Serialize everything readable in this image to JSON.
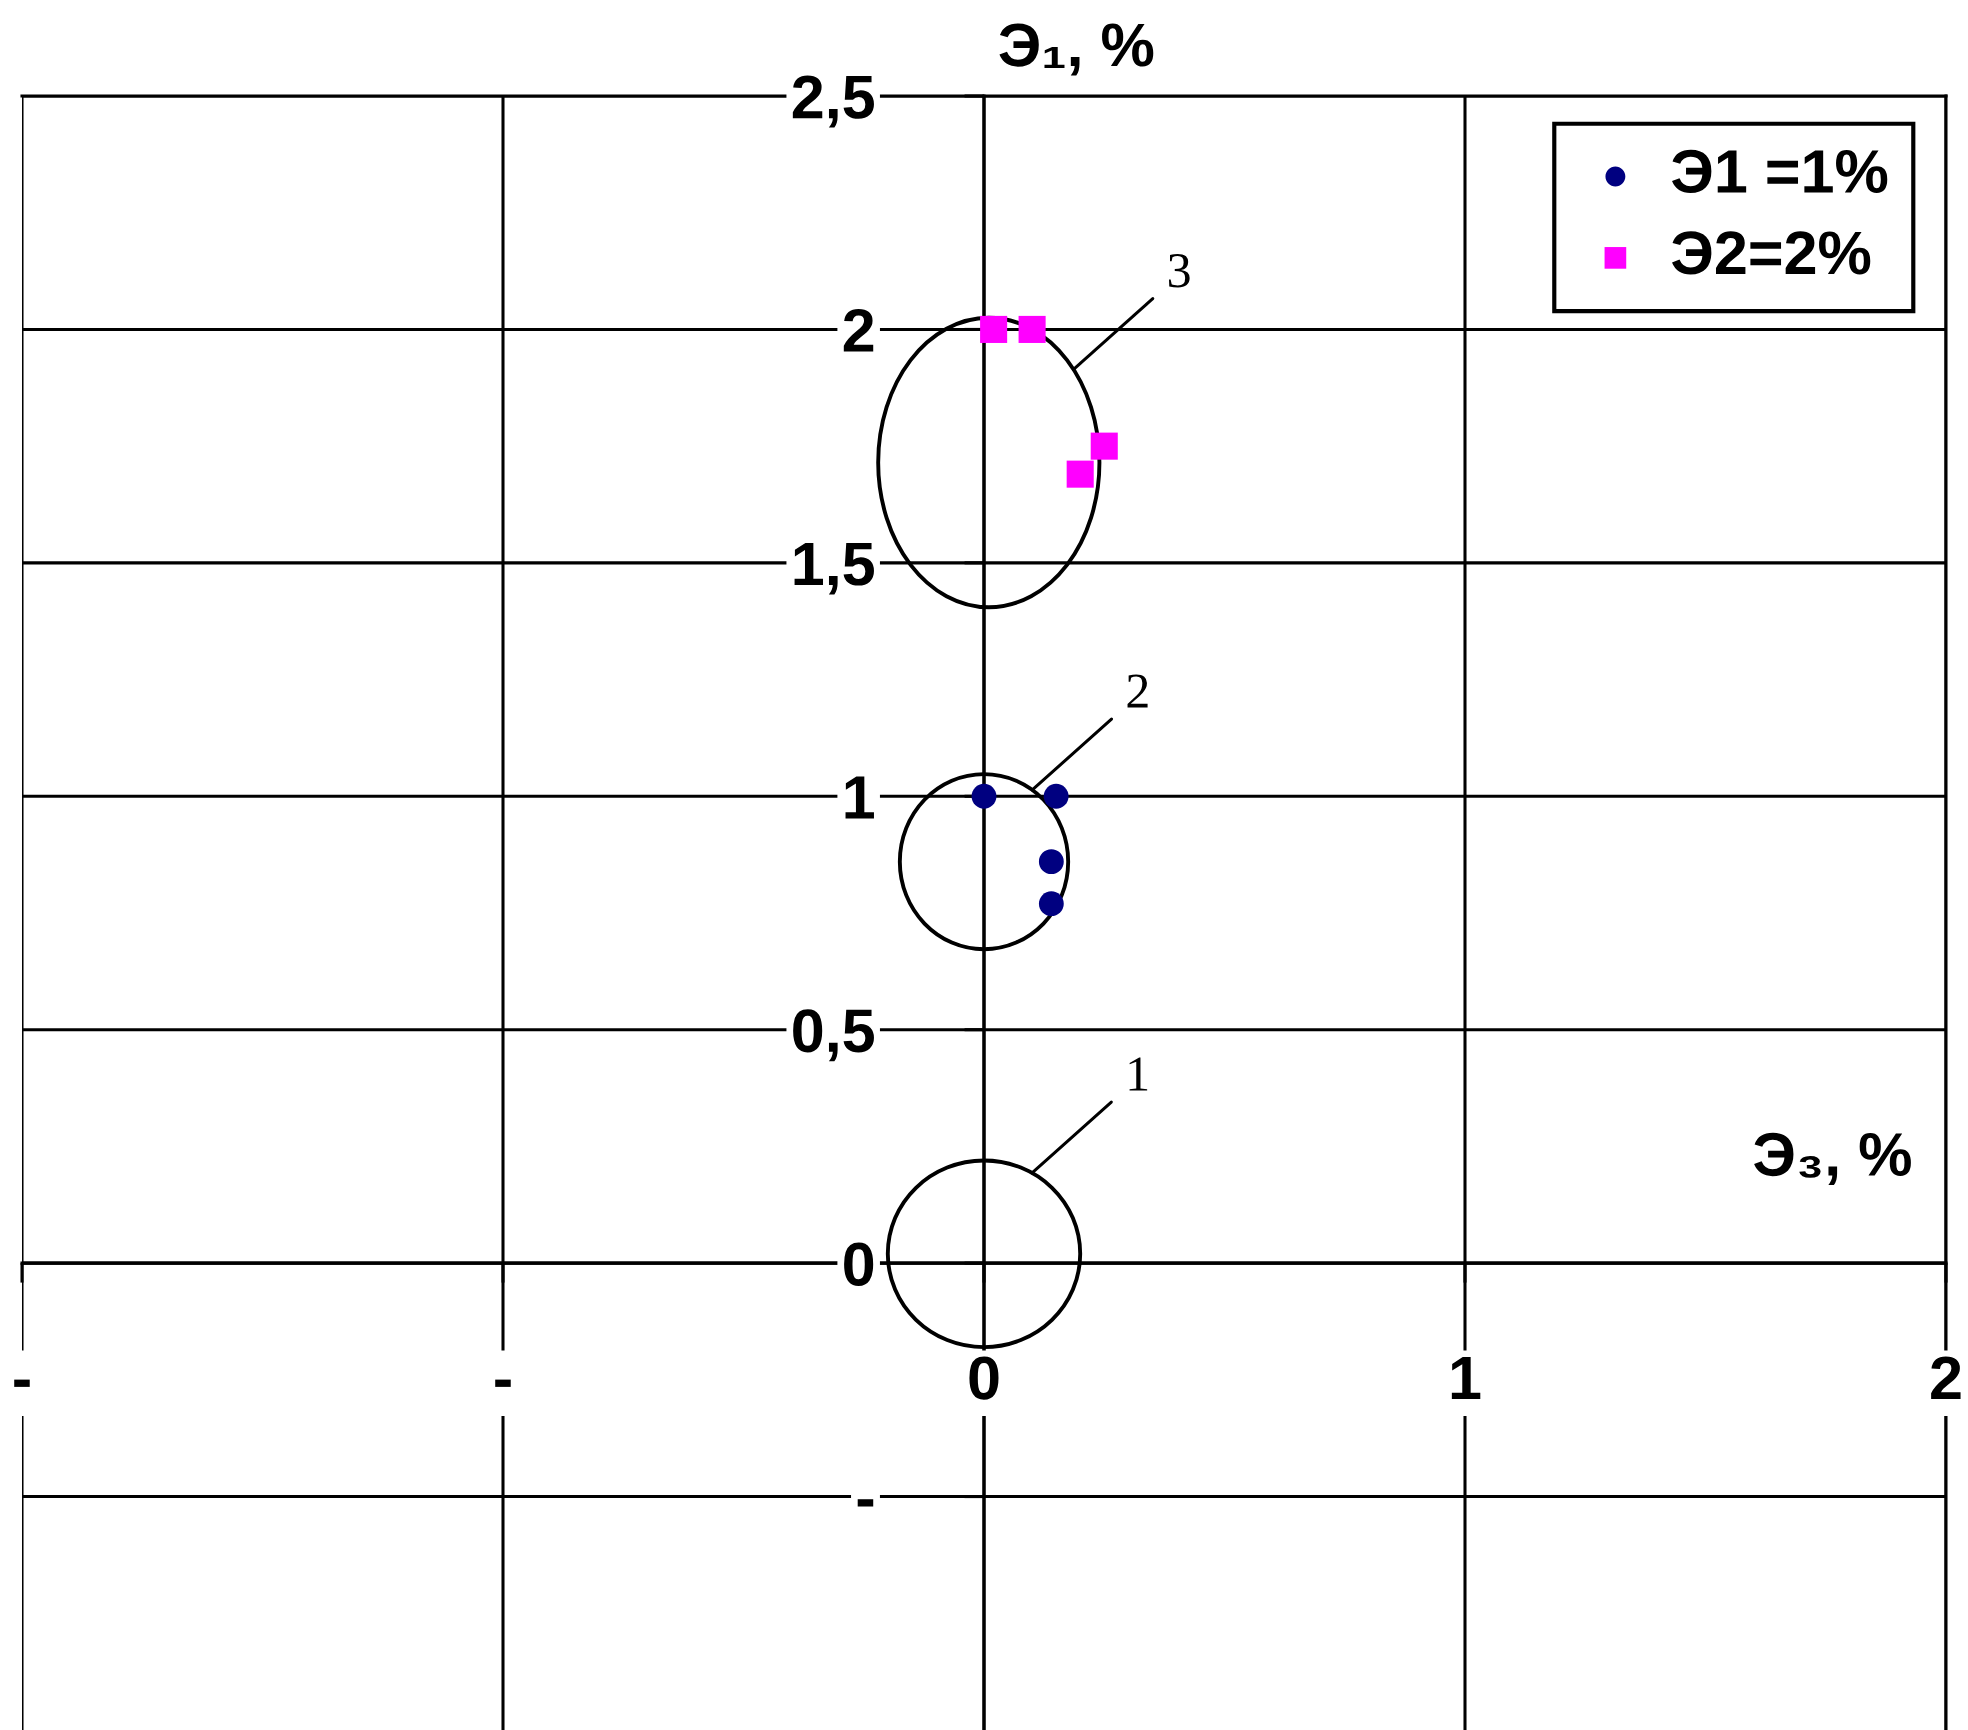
{
  "chart_data": {
    "type": "scatter",
    "xlabel": "Э₃, %",
    "ylabel": "Э₁, %",
    "xlim": [
      -2,
      2
    ],
    "ylim": [
      -1,
      2.5
    ],
    "xticks": [
      {
        "value": -2,
        "label": "-"
      },
      {
        "value": -1,
        "label": "-"
      },
      0,
      1,
      2
    ],
    "yticks": [
      {
        "value": -0.5,
        "label": "-"
      },
      0,
      {
        "value": 0.5,
        "label": "0,5"
      },
      1,
      {
        "value": 1.5,
        "label": "1,5"
      },
      2,
      {
        "value": 2.5,
        "label": "2,5"
      }
    ],
    "grid": true,
    "legend": "top right",
    "series": [
      {
        "name": "Э1 =1%",
        "color": "#000080",
        "marker": "circle",
        "x": [
          0,
          0.15,
          0.14,
          0.14
        ],
        "values": [
          1,
          1,
          0.86,
          0.77
        ]
      },
      {
        "name": "Э2=2%",
        "color": "#ff00ff",
        "marker": "square",
        "x": [
          0.02,
          0.1,
          0.25,
          0.2
        ],
        "values": [
          2,
          2,
          1.75,
          1.69
        ]
      }
    ],
    "annotations": [
      "1",
      "2",
      "3"
    ]
  }
}
